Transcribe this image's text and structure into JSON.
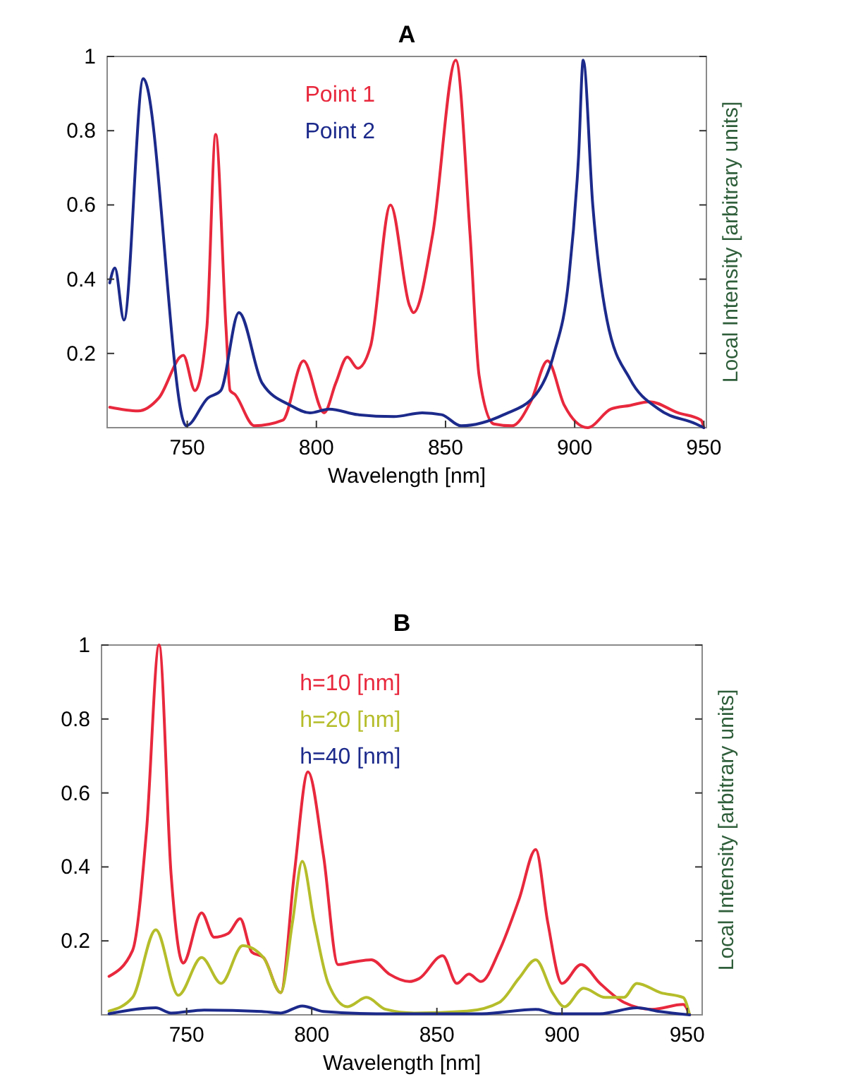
{
  "chart_data": [
    {
      "type": "line",
      "title": "A",
      "xlabel": "Wavelength [nm]",
      "ylabel": "Local Intensity [arbitrary units]",
      "xlim": [
        719,
        951
      ],
      "xticks": [
        750,
        800,
        850,
        900,
        950
      ],
      "ylim": [
        0,
        1
      ],
      "yticks": [
        0.2,
        0.4,
        0.6,
        0.8,
        1
      ],
      "grid": false,
      "legend": "top",
      "series": [
        {
          "name": "Point 1",
          "color": "#e8283c",
          "x": [
            720,
            731,
            739,
            748.5,
            753,
            757.6,
            761,
            765,
            766.6,
            768.4,
            776,
            787,
            795,
            803,
            807.5,
            812,
            816,
            821,
            828.7,
            836,
            837.6,
            845,
            854,
            859.5,
            863,
            868.7,
            875.8,
            883,
            889.5,
            896,
            905,
            914,
            921.5,
            929,
            940,
            949,
            950
          ],
          "values": [
            0.055,
            0.045,
            0.08,
            0.195,
            0.1,
            0.27,
            0.79,
            0.27,
            0.1,
            0.09,
            0.005,
            0.02,
            0.18,
            0.04,
            0.12,
            0.19,
            0.16,
            0.22,
            0.6,
            0.33,
            0.31,
            0.52,
            0.99,
            0.52,
            0.14,
            0.01,
            0.005,
            0.07,
            0.18,
            0.06,
            0,
            0.05,
            0.06,
            0.07,
            0.04,
            0.02,
            0
          ]
        },
        {
          "name": "Point 2",
          "color": "#1c2a8c",
          "x": [
            720,
            722,
            725.5,
            733,
            749.6,
            758,
            763,
            770,
            779,
            790,
            797.5,
            805,
            816,
            830,
            841,
            848.5,
            856,
            872.5,
            885,
            892,
            897.7,
            901.5,
            903.3,
            907,
            912.5,
            921.5,
            932.5,
            947,
            950
          ],
          "values": [
            0.39,
            0.43,
            0.29,
            0.94,
            0.005,
            0.08,
            0.1,
            0.31,
            0.12,
            0.06,
            0.04,
            0.05,
            0.035,
            0.03,
            0.04,
            0.035,
            0.005,
            0.035,
            0.09,
            0.2,
            0.4,
            0.73,
            0.99,
            0.6,
            0.29,
            0.13,
            0.05,
            0.01,
            0
          ]
        }
      ]
    },
    {
      "type": "line",
      "title": "B",
      "xlabel": "Wavelength [nm]",
      "ylabel": "Local Intensity [arbitrary units]",
      "xlim": [
        716,
        956
      ],
      "xticks": [
        750,
        800,
        850,
        900,
        950
      ],
      "ylim": [
        0,
        1
      ],
      "yticks": [
        0.2,
        0.4,
        0.6,
        0.8,
        1
      ],
      "grid": false,
      "legend": "top",
      "series": [
        {
          "name": "h=10 [nm]",
          "color": "#e8283c",
          "x": [
            719,
            728.4,
            734,
            739,
            743.8,
            748.6,
            756,
            761,
            766.6,
            771.4,
            776,
            780.7,
            787.6,
            793,
            798.5,
            804.7,
            810.5,
            816,
            823.8,
            831,
            839,
            842.9,
            852.3,
            858,
            862.8,
            867.6,
            875,
            882.9,
            889.5,
            894.3,
            900,
            907.6,
            915.2,
            924.7,
            936,
            948.4,
            951
          ],
          "values": [
            0.104,
            0.174,
            0.5,
            1,
            0.38,
            0.14,
            0.276,
            0.21,
            0.22,
            0.26,
            0.17,
            0.155,
            0.06,
            0.38,
            0.657,
            0.43,
            0.136,
            0.142,
            0.149,
            0.11,
            0.09,
            0.098,
            0.16,
            0.085,
            0.11,
            0.09,
            0.174,
            0.314,
            0.447,
            0.25,
            0.085,
            0.136,
            0.085,
            0.034,
            0.015,
            0.028,
            0
          ]
        },
        {
          "name": "h=20 [nm]",
          "color": "#b5bd2a",
          "x": [
            719,
            728.4,
            737.7,
            746.7,
            756,
            763.8,
            772.4,
            780.7,
            787.6,
            792.3,
            796.2,
            801,
            806.6,
            814.3,
            821.9,
            829.5,
            841,
            862,
            875,
            882.9,
            889.5,
            896.2,
            901,
            908.6,
            917.3,
            924.7,
            929.9,
            939.4,
            948.4,
            951
          ],
          "values": [
            0.01,
            0.047,
            0.23,
            0.053,
            0.155,
            0.085,
            0.187,
            0.155,
            0.06,
            0.25,
            0.415,
            0.25,
            0.085,
            0.022,
            0.047,
            0.015,
            0.005,
            0.01,
            0.034,
            0.1,
            0.149,
            0.06,
            0.022,
            0.072,
            0.047,
            0.047,
            0.085,
            0.06,
            0.047,
            0
          ]
        },
        {
          "name": "h=40 [nm]",
          "color": "#1c2a8c",
          "x": [
            719,
            737.7,
            743.8,
            757,
            780,
            787.6,
            796.2,
            804.7,
            825.8,
            868,
            889.5,
            898,
            915,
            930,
            939,
            951
          ],
          "values": [
            0.003,
            0.019,
            0.005,
            0.013,
            0.009,
            0.005,
            0.024,
            0.009,
            0.003,
            0.003,
            0.015,
            0.003,
            0.003,
            0.019,
            0.009,
            0
          ]
        }
      ]
    }
  ]
}
